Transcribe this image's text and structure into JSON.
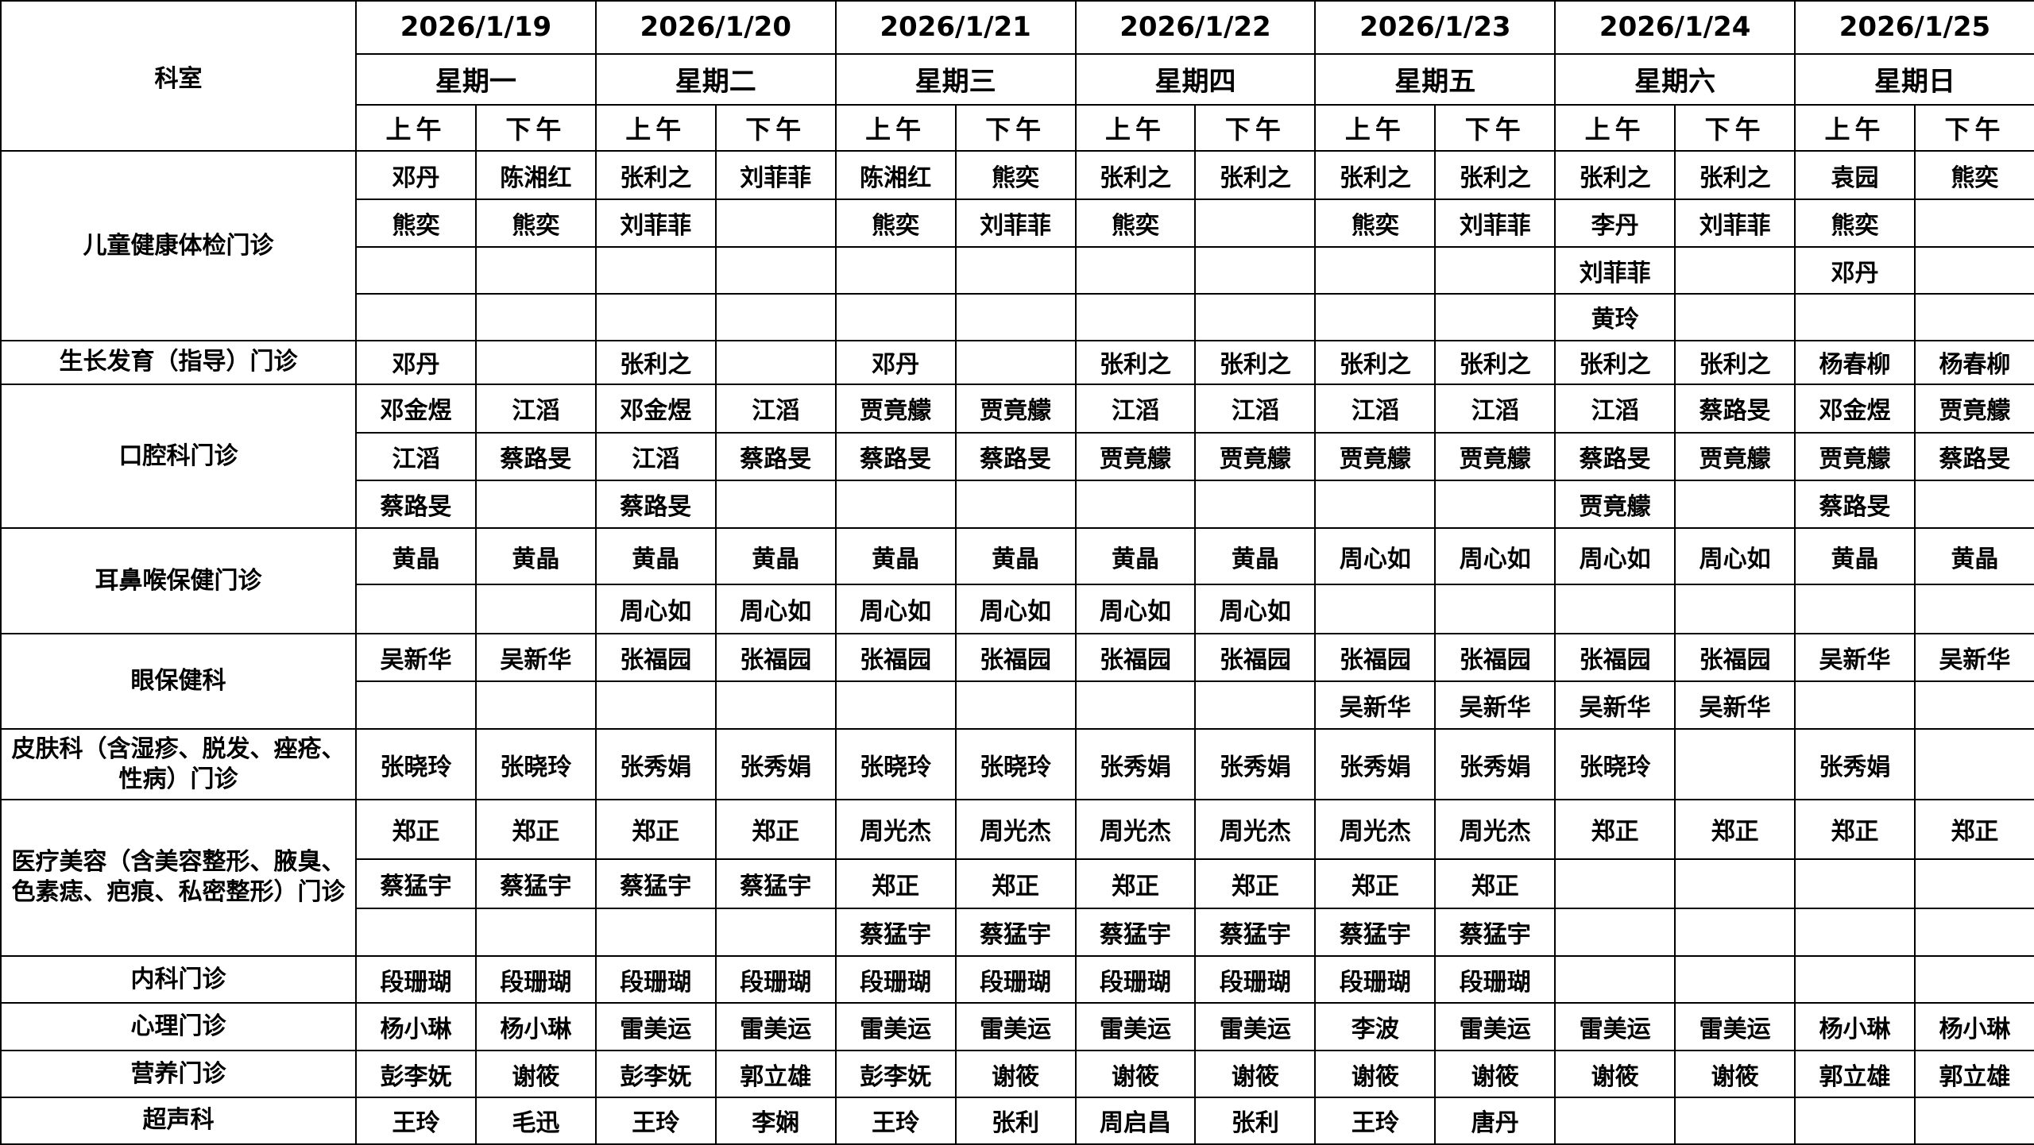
{
  "header": {
    "corner": "科室",
    "dates": [
      "2026/1/19",
      "2026/1/20",
      "2026/1/21",
      "2026/1/22",
      "2026/1/23",
      "2026/1/24",
      "2026/1/25"
    ],
    "weekdays": [
      "星期一",
      "星期二",
      "星期三",
      "星期四",
      "星期五",
      "星期六",
      "星期日"
    ],
    "halves": [
      "上午",
      "下午",
      "上午",
      "下午",
      "上午",
      "下午",
      "上午",
      "下午",
      "上午",
      "下午",
      "上午",
      "下午",
      "上午",
      "下午"
    ]
  },
  "departments": [
    {
      "name": "儿童健康体检门诊",
      "rows": [
        [
          "邓丹",
          "陈湘红",
          "张利之",
          "刘菲菲",
          "陈湘红",
          "熊奕",
          "张利之",
          "张利之",
          "张利之",
          "张利之",
          "张利之",
          "张利之",
          "袁园",
          "熊奕"
        ],
        [
          "熊奕",
          "熊奕",
          "刘菲菲",
          null,
          "熊奕",
          "刘菲菲",
          "熊奕",
          null,
          "熊奕",
          "刘菲菲",
          "李丹",
          "刘菲菲",
          "熊奕",
          null
        ],
        [
          null,
          null,
          null,
          null,
          null,
          null,
          null,
          null,
          null,
          null,
          "刘菲菲",
          null,
          "邓丹",
          null
        ],
        [
          null,
          null,
          null,
          null,
          null,
          null,
          null,
          null,
          null,
          null,
          "黄玲",
          null,
          null,
          null
        ]
      ]
    },
    {
      "name": "生长发育（指导）门诊",
      "rows": [
        [
          "邓丹",
          null,
          "张利之",
          null,
          "邓丹",
          null,
          "张利之",
          "张利之",
          "张利之",
          "张利之",
          "张利之",
          "张利之",
          "杨春柳",
          "杨春柳"
        ]
      ]
    },
    {
      "name": "口腔科门诊",
      "rows": [
        [
          "邓金煜",
          "江滔",
          "邓金煜",
          "江滔",
          "贾竟艨",
          "贾竟艨",
          "江滔",
          "江滔",
          "江滔",
          "江滔",
          "江滔",
          "蔡路旻",
          "邓金煜",
          "贾竟艨"
        ],
        [
          "江滔",
          "蔡路旻",
          "江滔",
          "蔡路旻",
          "蔡路旻",
          "蔡路旻",
          "贾竟艨",
          "贾竟艨",
          "贾竟艨",
          "贾竟艨",
          "蔡路旻",
          "贾竟艨",
          "贾竟艨",
          "蔡路旻"
        ],
        [
          "蔡路旻",
          null,
          "蔡路旻",
          null,
          null,
          null,
          null,
          null,
          null,
          null,
          "贾竟艨",
          null,
          "蔡路旻",
          null
        ]
      ]
    },
    {
      "name": "耳鼻喉保健门诊",
      "rows": [
        [
          "黄晶",
          "黄晶",
          "黄晶",
          "黄晶",
          "黄晶",
          "黄晶",
          "黄晶",
          "黄晶",
          "周心如",
          "周心如",
          "周心如",
          "周心如",
          "黄晶",
          "黄晶"
        ],
        [
          null,
          null,
          "周心如",
          "周心如",
          "周心如",
          "周心如",
          "周心如",
          "周心如",
          null,
          null,
          null,
          null,
          null,
          null
        ]
      ]
    },
    {
      "name": "眼保健科",
      "rows": [
        [
          "吴新华",
          "吴新华",
          "张福园",
          "张福园",
          "张福园",
          "张福园",
          "张福园",
          "张福园",
          "张福园",
          "张福园",
          "张福园",
          "张福园",
          "吴新华",
          "吴新华"
        ],
        [
          null,
          null,
          null,
          null,
          null,
          null,
          null,
          null,
          "吴新华",
          "吴新华",
          "吴新华",
          "吴新华",
          null,
          null
        ]
      ]
    },
    {
      "name": "皮肤科（含湿疹、脱发、痤疮、性病）门诊",
      "rows": [
        [
          "张晓玲",
          "张晓玲",
          "张秀娟",
          "张秀娟",
          "张晓玲",
          "张晓玲",
          "张秀娟",
          "张秀娟",
          "张秀娟",
          "张秀娟",
          "张晓玲",
          null,
          "张秀娟",
          null
        ]
      ]
    },
    {
      "name": "医疗美容（含美容整形、腋臭、色素痣、疤痕、私密整形）门诊",
      "rows": [
        [
          "郑正",
          "郑正",
          "郑正",
          "郑正",
          "周光杰",
          "周光杰",
          "周光杰",
          "周光杰",
          "周光杰",
          "周光杰",
          "郑正",
          "郑正",
          "郑正",
          "郑正"
        ],
        [
          "蔡猛宇",
          "蔡猛宇",
          "蔡猛宇",
          "蔡猛宇",
          "郑正",
          "郑正",
          "郑正",
          "郑正",
          "郑正",
          "郑正",
          null,
          null,
          null,
          null
        ],
        [
          null,
          null,
          null,
          null,
          "蔡猛宇",
          "蔡猛宇",
          "蔡猛宇",
          "蔡猛宇",
          "蔡猛宇",
          "蔡猛宇",
          null,
          null,
          null,
          null
        ]
      ]
    },
    {
      "name": "内科门诊",
      "rows": [
        [
          "段珊瑚",
          "段珊瑚",
          "段珊瑚",
          "段珊瑚",
          "段珊瑚",
          "段珊瑚",
          "段珊瑚",
          "段珊瑚",
          "段珊瑚",
          "段珊瑚",
          null,
          null,
          null,
          null
        ]
      ]
    },
    {
      "name": "心理门诊",
      "rows": [
        [
          "杨小琳",
          "杨小琳",
          "雷美运",
          "雷美运",
          "雷美运",
          "雷美运",
          "雷美运",
          "雷美运",
          "李波",
          "雷美运",
          "雷美运",
          "雷美运",
          "杨小琳",
          "杨小琳"
        ]
      ]
    },
    {
      "name": "营养门诊",
      "rows": [
        [
          "彭李妩",
          "谢筱",
          "彭李妩",
          "郭立雄",
          "彭李妩",
          "谢筱",
          "谢筱",
          "谢筱",
          "谢筱",
          "谢筱",
          "谢筱",
          "谢筱",
          "郭立雄",
          "郭立雄"
        ]
      ]
    },
    {
      "name": "超声科",
      "rows": [
        [
          "王玲",
          "毛迅",
          "王玲",
          "李娴",
          "王玲",
          "张利",
          "周启昌",
          "张利",
          "王玲",
          "唐丹",
          null,
          null,
          null,
          null
        ]
      ]
    }
  ]
}
